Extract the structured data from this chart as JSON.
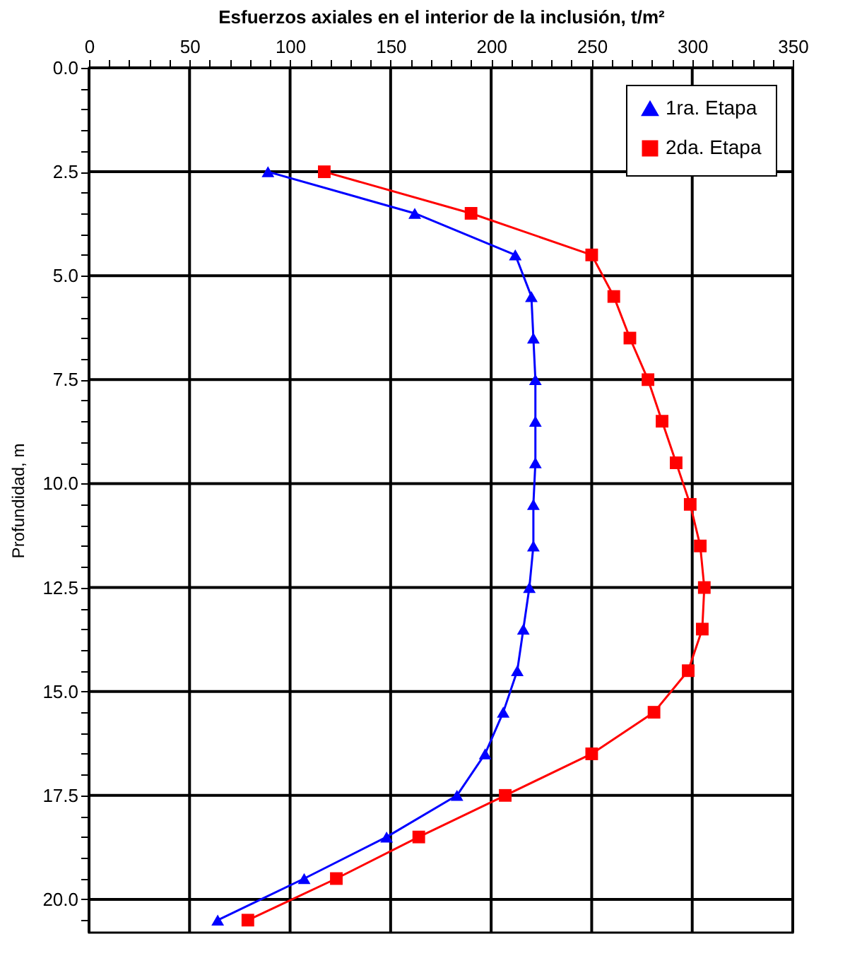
{
  "chart_data": {
    "type": "line",
    "xlabel": "Esfuerzos axiales en el interior de la inclusión, t/m²",
    "ylabel": "Profundidad, m",
    "xlim": [
      0,
      350
    ],
    "xticks": [
      0,
      {
        "value": 10,
        "label": null
      },
      {
        "value": 20,
        "label": null
      },
      {
        "value": 30,
        "label": null
      },
      {
        "value": 40,
        "label": null
      },
      50,
      {
        "value": 60,
        "label": null
      },
      {
        "value": 70,
        "label": null
      },
      {
        "value": 80,
        "label": null
      },
      {
        "value": 90,
        "label": null
      },
      100,
      {
        "value": 110,
        "label": null
      },
      {
        "value": 120,
        "label": null
      },
      {
        "value": 130,
        "label": null
      },
      {
        "value": 140,
        "label": null
      },
      150,
      {
        "value": 160,
        "label": null
      },
      {
        "value": 170,
        "label": null
      },
      {
        "value": 180,
        "label": null
      },
      {
        "value": 190,
        "label": null
      },
      200,
      {
        "value": 210,
        "label": null
      },
      {
        "value": 220,
        "label": null
      },
      {
        "value": 230,
        "label": null
      },
      {
        "value": 240,
        "label": null
      },
      250,
      {
        "value": 260,
        "label": null
      },
      {
        "value": 270,
        "label": null
      },
      {
        "value": 280,
        "label": null
      },
      {
        "value": 290,
        "label": null
      },
      300,
      {
        "value": 310,
        "label": null
      },
      {
        "value": 320,
        "label": null
      },
      {
        "value": 330,
        "label": null
      },
      {
        "value": 340,
        "label": null
      },
      350
    ],
    "ylim": [
      20.8,
      0
    ],
    "yticks": [
      {
        "value": 0,
        "label": "0.0"
      },
      {
        "value": 0.5,
        "label": null
      },
      {
        "value": 1,
        "label": null
      },
      {
        "value": 1.5,
        "label": null
      },
      {
        "value": 2,
        "label": null
      },
      {
        "value": 2.5,
        "label": "2.5"
      },
      {
        "value": 3,
        "label": null
      },
      {
        "value": 3.5,
        "label": null
      },
      {
        "value": 4,
        "label": null
      },
      {
        "value": 4.5,
        "label": null
      },
      {
        "value": 5,
        "label": "5.0"
      },
      {
        "value": 5.5,
        "label": null
      },
      {
        "value": 6,
        "label": null
      },
      {
        "value": 6.5,
        "label": null
      },
      {
        "value": 7,
        "label": null
      },
      {
        "value": 7.5,
        "label": "7.5"
      },
      {
        "value": 8,
        "label": null
      },
      {
        "value": 8.5,
        "label": null
      },
      {
        "value": 9,
        "label": null
      },
      {
        "value": 9.5,
        "label": null
      },
      {
        "value": 10,
        "label": "10.0"
      },
      {
        "value": 10.5,
        "label": null
      },
      {
        "value": 11,
        "label": null
      },
      {
        "value": 11.5,
        "label": null
      },
      {
        "value": 12,
        "label": null
      },
      {
        "value": 12.5,
        "label": "12.5"
      },
      {
        "value": 13,
        "label": null
      },
      {
        "value": 13.5,
        "label": null
      },
      {
        "value": 14,
        "label": null
      },
      {
        "value": 14.5,
        "label": null
      },
      {
        "value": 15,
        "label": "15.0"
      },
      {
        "value": 15.5,
        "label": null
      },
      {
        "value": 16,
        "label": null
      },
      {
        "value": 16.5,
        "label": null
      },
      {
        "value": 17,
        "label": null
      },
      {
        "value": 17.5,
        "label": "17.5"
      },
      {
        "value": 18,
        "label": null
      },
      {
        "value": 18.5,
        "label": null
      },
      {
        "value": 19,
        "label": null
      },
      {
        "value": 19.5,
        "label": null
      },
      {
        "value": 20,
        "label": "20.0"
      },
      {
        "value": 20.5,
        "label": null
      }
    ],
    "grid": true,
    "legend": "top right",
    "series": [
      {
        "name": "1ra. Etapa",
        "color": "#0000ff",
        "marker": "triangle",
        "x": [
          89,
          162,
          212,
          220,
          221,
          222,
          222,
          222,
          221,
          221,
          219,
          216,
          213,
          206,
          197,
          183,
          148,
          107,
          64
        ],
        "values": [
          2.5,
          3.5,
          4.5,
          5.5,
          6.5,
          7.5,
          8.5,
          9.5,
          10.5,
          11.5,
          12.5,
          13.5,
          14.5,
          15.5,
          16.5,
          17.5,
          18.5,
          19.5,
          20.5
        ]
      },
      {
        "name": "2da. Etapa",
        "color": "#ff0000",
        "marker": "square",
        "x": [
          117,
          190,
          250,
          261,
          269,
          278,
          285,
          292,
          299,
          304,
          306,
          305,
          298,
          281,
          250,
          207,
          164,
          123,
          79
        ],
        "values": [
          2.5,
          3.5,
          4.5,
          5.5,
          6.5,
          7.5,
          8.5,
          9.5,
          10.5,
          11.5,
          12.5,
          13.5,
          14.5,
          15.5,
          16.5,
          17.5,
          18.5,
          19.5,
          20.5
        ]
      }
    ]
  }
}
